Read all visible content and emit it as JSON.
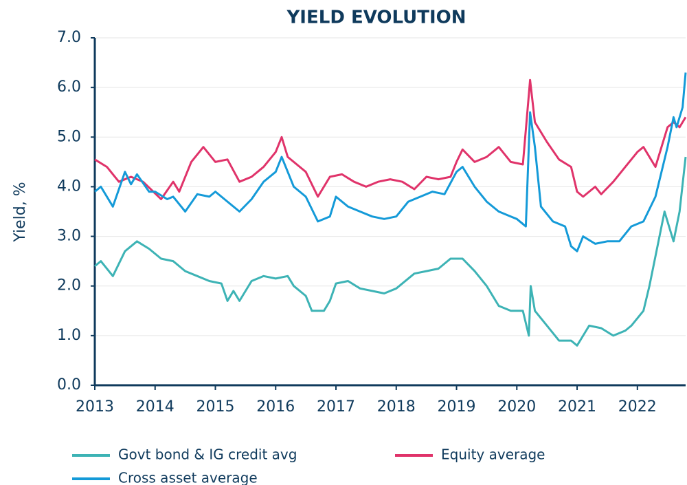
{
  "chart_data": {
    "type": "line",
    "title": "YIELD EVOLUTION",
    "y_label": "Yield, %",
    "xlim": [
      2013,
      2022.8
    ],
    "xticks": [
      2013,
      2014,
      2015,
      2016,
      2017,
      2018,
      2019,
      2020,
      2021,
      2022
    ],
    "ylim": [
      0,
      7
    ],
    "yticks": [
      {
        "value": 0,
        "label": "0.0"
      },
      {
        "value": 1,
        "label": "1.0"
      },
      {
        "value": 2,
        "label": "2.0"
      },
      {
        "value": 3,
        "label": "3.0"
      },
      {
        "value": 4,
        "label": "4.0"
      },
      {
        "value": 5,
        "label": "5.0"
      },
      {
        "value": 6,
        "label": "6.0"
      },
      {
        "value": 7,
        "label": "7.0"
      }
    ],
    "grid": true,
    "series": [
      {
        "name": "Govt bond & IG credit avg",
        "color": "#3db3b5",
        "x": [
          2013,
          2013.1,
          2013.3,
          2013.5,
          2013.7,
          2013.9,
          2014.1,
          2014.3,
          2014.5,
          2014.7,
          2014.9,
          2015.1,
          2015.2,
          2015.3,
          2015.4,
          2015.6,
          2015.8,
          2016.0,
          2016.2,
          2016.3,
          2016.5,
          2016.6,
          2016.8,
          2016.9,
          2017.0,
          2017.2,
          2017.4,
          2017.6,
          2017.8,
          2018.0,
          2018.3,
          2018.5,
          2018.7,
          2018.9,
          2019.1,
          2019.3,
          2019.5,
          2019.7,
          2019.9,
          2020.1,
          2020.2,
          2020.23,
          2020.3,
          2020.5,
          2020.7,
          2020.9,
          2021.0,
          2021.1,
          2021.2,
          2021.4,
          2021.6,
          2021.8,
          2021.9,
          2022.1,
          2022.2,
          2022.35,
          2022.45,
          2022.6,
          2022.7,
          2022.8
        ],
        "values": [
          2.4,
          2.5,
          2.2,
          2.7,
          2.9,
          2.75,
          2.55,
          2.5,
          2.3,
          2.2,
          2.1,
          2.05,
          1.7,
          1.9,
          1.7,
          2.1,
          2.2,
          2.15,
          2.2,
          2.0,
          1.8,
          1.5,
          1.5,
          1.7,
          2.05,
          2.1,
          1.95,
          1.9,
          1.85,
          1.95,
          2.25,
          2.3,
          2.35,
          2.55,
          2.55,
          2.3,
          2.0,
          1.6,
          1.5,
          1.5,
          1.0,
          2.0,
          1.5,
          1.2,
          0.9,
          0.9,
          0.8,
          1.0,
          1.2,
          1.15,
          1.0,
          1.1,
          1.2,
          1.5,
          2.0,
          2.9,
          3.5,
          2.9,
          3.5,
          4.6
        ]
      },
      {
        "name": "Equity average",
        "color": "#e0336a",
        "x": [
          2013,
          2013.2,
          2013.4,
          2013.6,
          2013.8,
          2014.1,
          2014.3,
          2014.4,
          2014.6,
          2014.8,
          2015.0,
          2015.2,
          2015.4,
          2015.6,
          2015.8,
          2016.0,
          2016.1,
          2016.2,
          2016.4,
          2016.5,
          2016.7,
          2016.9,
          2017.1,
          2017.3,
          2017.5,
          2017.7,
          2017.9,
          2018.1,
          2018.3,
          2018.5,
          2018.7,
          2018.9,
          2019.0,
          2019.1,
          2019.3,
          2019.5,
          2019.7,
          2019.9,
          2020.1,
          2020.22,
          2020.3,
          2020.5,
          2020.7,
          2020.9,
          2021.0,
          2021.1,
          2021.3,
          2021.4,
          2021.6,
          2021.8,
          2022.0,
          2022.1,
          2022.3,
          2022.4,
          2022.5,
          2022.6,
          2022.7,
          2022.8
        ],
        "values": [
          4.55,
          4.4,
          4.1,
          4.2,
          4.1,
          3.75,
          4.1,
          3.9,
          4.5,
          4.8,
          4.5,
          4.55,
          4.1,
          4.2,
          4.4,
          4.7,
          5.0,
          4.6,
          4.4,
          4.3,
          3.8,
          4.2,
          4.25,
          4.1,
          4.0,
          4.1,
          4.15,
          4.1,
          3.95,
          4.2,
          4.15,
          4.2,
          4.5,
          4.75,
          4.5,
          4.6,
          4.8,
          4.5,
          4.45,
          6.15,
          5.3,
          4.9,
          4.55,
          4.4,
          3.9,
          3.8,
          4.0,
          3.85,
          4.1,
          4.4,
          4.7,
          4.8,
          4.4,
          4.8,
          5.2,
          5.3,
          5.2,
          5.4
        ]
      },
      {
        "name": "Cross asset average",
        "color": "#149ad8",
        "x": [
          2013,
          2013.1,
          2013.3,
          2013.5,
          2013.6,
          2013.7,
          2013.9,
          2014.0,
          2014.2,
          2014.3,
          2014.5,
          2014.7,
          2014.9,
          2015.0,
          2015.2,
          2015.4,
          2015.6,
          2015.8,
          2016.0,
          2016.1,
          2016.3,
          2016.5,
          2016.7,
          2016.9,
          2017.0,
          2017.2,
          2017.4,
          2017.6,
          2017.8,
          2018.0,
          2018.2,
          2018.4,
          2018.6,
          2018.8,
          2019.0,
          2019.1,
          2019.3,
          2019.5,
          2019.7,
          2019.9,
          2020.0,
          2020.15,
          2020.22,
          2020.3,
          2020.4,
          2020.6,
          2020.8,
          2020.9,
          2021.0,
          2021.1,
          2021.3,
          2021.5,
          2021.7,
          2021.9,
          2022.1,
          2022.3,
          2022.5,
          2022.6,
          2022.65,
          2022.75,
          2022.8
        ],
        "values": [
          3.9,
          4.0,
          3.6,
          4.3,
          4.05,
          4.25,
          3.9,
          3.9,
          3.75,
          3.8,
          3.5,
          3.85,
          3.8,
          3.9,
          3.7,
          3.5,
          3.75,
          4.1,
          4.3,
          4.6,
          4.0,
          3.8,
          3.3,
          3.4,
          3.8,
          3.6,
          3.5,
          3.4,
          3.35,
          3.4,
          3.7,
          3.8,
          3.9,
          3.85,
          4.3,
          4.4,
          4.0,
          3.7,
          3.5,
          3.4,
          3.35,
          3.2,
          5.5,
          4.8,
          3.6,
          3.3,
          3.2,
          2.8,
          2.7,
          3.0,
          2.85,
          2.9,
          2.9,
          3.2,
          3.3,
          3.8,
          4.8,
          5.4,
          5.2,
          5.6,
          6.3
        ]
      }
    ]
  }
}
